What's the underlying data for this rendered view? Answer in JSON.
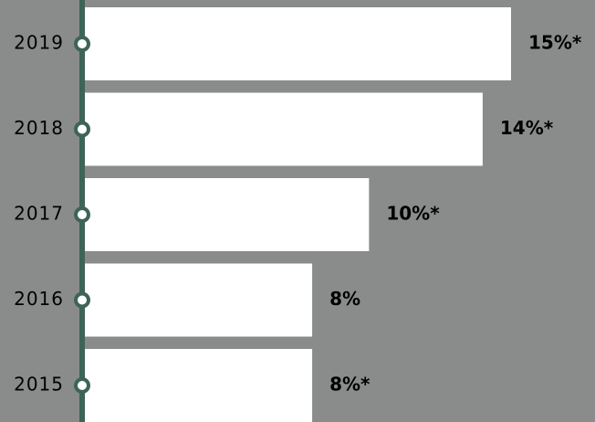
{
  "chart_data": {
    "type": "bar",
    "orientation": "horizontal",
    "categories": [
      "2019",
      "2018",
      "2017",
      "2016",
      "2015"
    ],
    "values": [
      15,
      14,
      10,
      8,
      8
    ],
    "value_labels": [
      "15%*",
      "14%*",
      "10%*",
      "8%",
      "8%*"
    ],
    "color": "#ffffff"
  }
}
